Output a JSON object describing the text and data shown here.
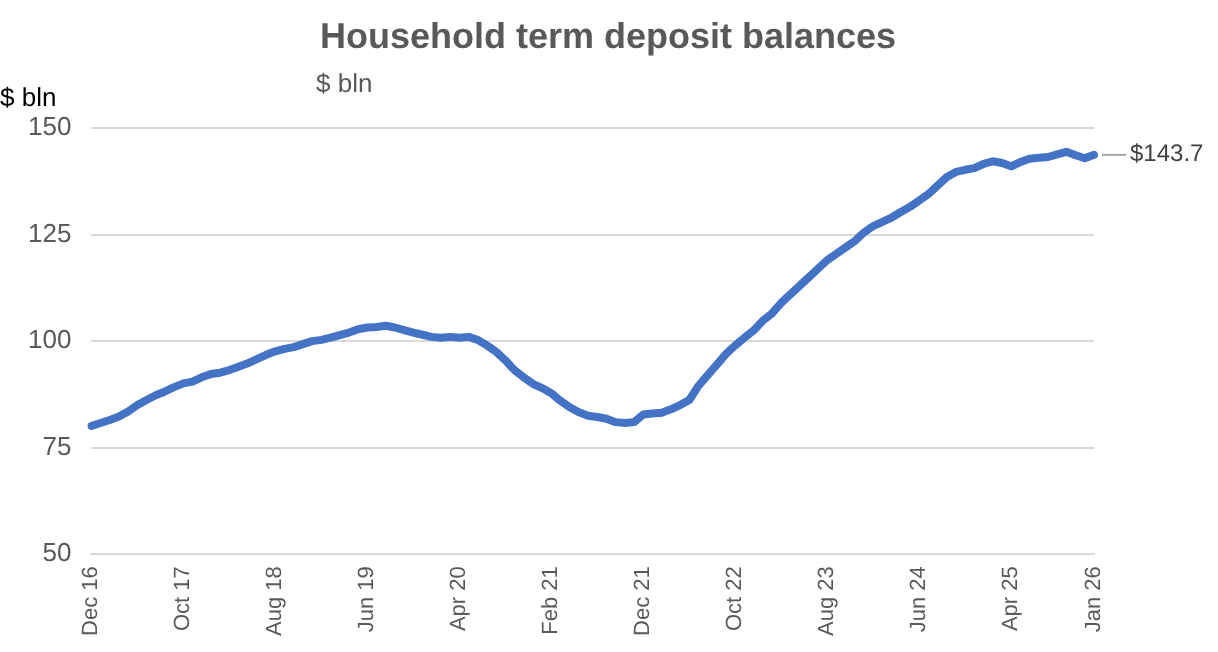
{
  "chart_data": {
    "type": "line",
    "title": "Household term deposit balances",
    "subtitle": "$ bln",
    "ylabel": "$ bln",
    "categories": [
      "Dec 16",
      null,
      null,
      null,
      null,
      null,
      null,
      null,
      null,
      null,
      "Oct 17",
      null,
      null,
      null,
      null,
      null,
      null,
      null,
      null,
      null,
      "Aug 18",
      null,
      null,
      null,
      null,
      null,
      null,
      null,
      null,
      null,
      "Jun 19",
      null,
      null,
      null,
      null,
      null,
      null,
      null,
      null,
      null,
      "Apr 20",
      null,
      null,
      null,
      null,
      null,
      null,
      null,
      null,
      null,
      "Feb 21",
      null,
      null,
      null,
      null,
      null,
      null,
      null,
      null,
      null,
      "Dec 21",
      null,
      null,
      null,
      null,
      null,
      null,
      null,
      null,
      null,
      "Oct 22",
      null,
      null,
      null,
      null,
      null,
      null,
      null,
      null,
      null,
      "Aug 23",
      null,
      null,
      null,
      null,
      null,
      null,
      null,
      null,
      null,
      "Jun 24",
      null,
      null,
      null,
      null,
      null,
      null,
      null,
      null,
      null,
      "Apr 25",
      null,
      null,
      null,
      null,
      null,
      null,
      null,
      null,
      "Jan 26"
    ],
    "series": [
      {
        "color": "#4472c4",
        "values": [
          80.1,
          80.8,
          81.5,
          82.3,
          83.5,
          85,
          86.2,
          87.3,
          88.2,
          89.2,
          90.1,
          90.5,
          91.5,
          92.3,
          92.6,
          93.2,
          94,
          94.8,
          95.8,
          96.8,
          97.6,
          98.2,
          98.6,
          99.3,
          100,
          100.3,
          100.8,
          101.4,
          102,
          102.8,
          103.2,
          103.3,
          103.6,
          103.2,
          102.6,
          102,
          101.5,
          101,
          100.8,
          101,
          100.8,
          101,
          100.3,
          99,
          97.5,
          95.5,
          93.2,
          91.5,
          90,
          89,
          87.8,
          86,
          84.5,
          83.3,
          82.5,
          82.2,
          81.8,
          81,
          80.8,
          81,
          82.8,
          83,
          83.2,
          84,
          85,
          86.2,
          89.5,
          92,
          94.5,
          97,
          99,
          100.8,
          102.5,
          104.8,
          106.5,
          109,
          111,
          113,
          115,
          117,
          119,
          120.5,
          122,
          123.5,
          125.5,
          127,
          128,
          129,
          130.3,
          131.5,
          133,
          134.5,
          136.5,
          138.5,
          139.7,
          140.2,
          140.6,
          141.6,
          142.2,
          141.8,
          141,
          142,
          142.8,
          143,
          143.2,
          143.8,
          144.4,
          143.6,
          142.9,
          143.7
        ]
      }
    ],
    "ylim": [
      50,
      150
    ],
    "yticks": [
      50,
      75,
      100,
      125,
      150
    ],
    "grid": "y",
    "legend": false,
    "marker": "none",
    "line_style": "solid",
    "annotations": [
      {
        "text": "$143.7",
        "x": "Jan 26",
        "y": 143.7
      }
    ]
  }
}
